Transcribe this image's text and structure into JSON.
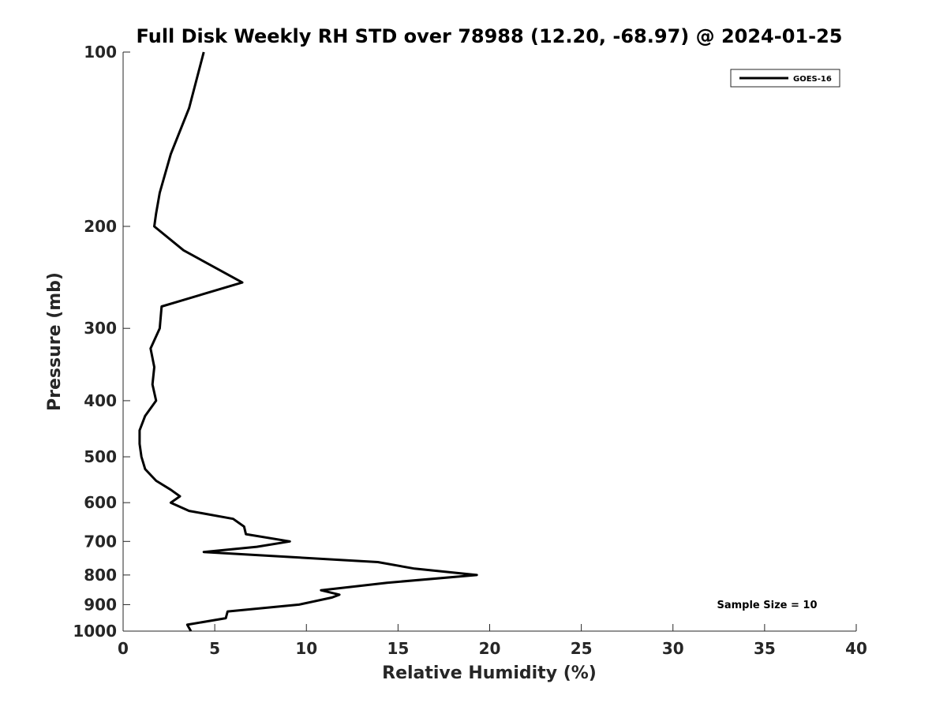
{
  "chart_data": {
    "type": "line",
    "title": "Full Disk Weekly RH STD over 78988 (12.20, -68.97) @ 2024-01-25",
    "xlabel": "Relative Humidity (%)",
    "ylabel": "Pressure (mb)",
    "xlim": [
      0,
      40
    ],
    "ylim": [
      1000,
      100
    ],
    "y_scale": "log",
    "y_inverted": true,
    "grid": false,
    "xticks": [
      0,
      5,
      10,
      15,
      20,
      25,
      30,
      35,
      40
    ],
    "yticks": [
      100,
      200,
      300,
      400,
      500,
      600,
      700,
      800,
      900,
      1000
    ],
    "legend_position": "top-right",
    "annotation": "Sample Size = 10",
    "series": [
      {
        "name": "GOES-16",
        "color": "#000000",
        "points": [
          [
            4.4,
            100
          ],
          [
            3.6,
            125
          ],
          [
            2.6,
            150
          ],
          [
            2.0,
            175
          ],
          [
            1.8,
            190
          ],
          [
            1.7,
            200
          ],
          [
            3.3,
            220
          ],
          [
            6.5,
            250
          ],
          [
            2.1,
            275
          ],
          [
            2.0,
            300
          ],
          [
            1.5,
            325
          ],
          [
            1.7,
            350
          ],
          [
            1.6,
            375
          ],
          [
            1.8,
            400
          ],
          [
            1.2,
            425
          ],
          [
            0.9,
            450
          ],
          [
            0.9,
            475
          ],
          [
            1.0,
            500
          ],
          [
            1.2,
            525
          ],
          [
            1.8,
            550
          ],
          [
            2.6,
            570
          ],
          [
            3.1,
            585
          ],
          [
            2.6,
            600
          ],
          [
            3.6,
            620
          ],
          [
            6.0,
            640
          ],
          [
            6.6,
            660
          ],
          [
            6.7,
            680
          ],
          [
            9.1,
            700
          ],
          [
            7.3,
            715
          ],
          [
            4.4,
            730
          ],
          [
            13.9,
            760
          ],
          [
            15.9,
            780
          ],
          [
            19.3,
            800
          ],
          [
            14.4,
            825
          ],
          [
            10.8,
            850
          ],
          [
            11.8,
            865
          ],
          [
            11.4,
            875
          ],
          [
            9.6,
            900
          ],
          [
            5.7,
            925
          ],
          [
            5.6,
            950
          ],
          [
            3.5,
            975
          ],
          [
            3.7,
            1000
          ]
        ]
      }
    ]
  }
}
